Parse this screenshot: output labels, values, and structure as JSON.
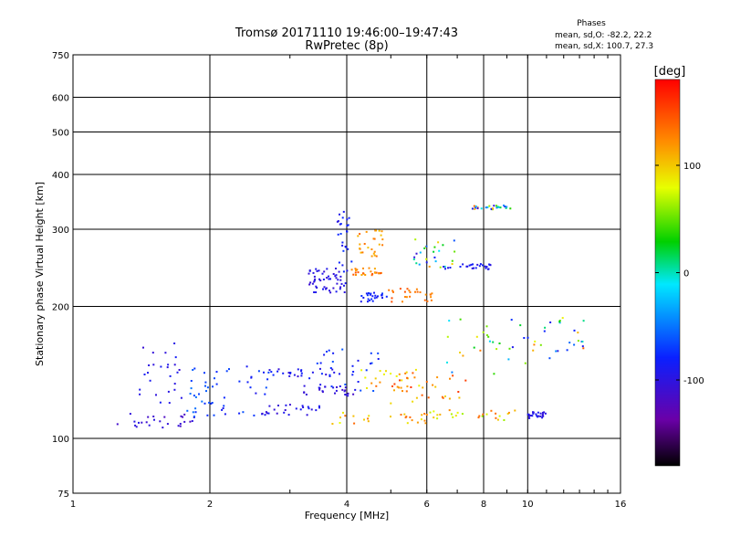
{
  "chart_data": {
    "type": "scatter",
    "title": "Tromsø 20171110 19:46:00–19:47:43",
    "subtitle": "RwPretec (8p)",
    "xlabel": "Frequency [MHz]",
    "ylabel": "Stationary phase Virtual Height [km]",
    "x_scale": "log",
    "y_scale": "log",
    "xlim": [
      1,
      16
    ],
    "ylim": [
      75,
      750
    ],
    "x_ticks": [
      1,
      2,
      4,
      6,
      8,
      10,
      16
    ],
    "x_tick_labels": [
      "1",
      "2",
      "4",
      "6",
      "8",
      "10",
      "16"
    ],
    "y_ticks": [
      75,
      100,
      200,
      300,
      400,
      500,
      600,
      750
    ],
    "y_tick_labels": [
      "75",
      "100",
      "200",
      "300",
      "400",
      "500",
      "600",
      "750"
    ],
    "grid": true,
    "phase_info": {
      "title": "Phases",
      "line1": "mean, sd,O: -82.2, 22.2",
      "line2": "mean, sd,X: 100.7, 27.3"
    },
    "colorbar": {
      "unit_label": "[deg]",
      "range": [
        -180,
        180
      ],
      "ticks": [
        100,
        0,
        -100
      ],
      "tick_labels": [
        "100",
        "0",
        "-100"
      ],
      "colormap": "rainbow (black → purple → blue → cyan → green → yellow → orange → red)"
    },
    "clusters": [
      {
        "f": [
          1.25,
          1.85
        ],
        "h": [
          105,
          115
        ],
        "ph": [
          -120,
          -95
        ]
      },
      {
        "f": [
          1.4,
          1.75
        ],
        "h": [
          115,
          165
        ],
        "ph": [
          -110,
          -85
        ]
      },
      {
        "f": [
          1.75,
          2.05
        ],
        "h": [
          112,
          145
        ],
        "ph": [
          -80,
          -50
        ]
      },
      {
        "f": [
          2.0,
          2.7
        ],
        "h": [
          112,
          150
        ],
        "ph": [
          -95,
          -60
        ]
      },
      {
        "f": [
          2.6,
          3.5
        ],
        "h": [
          113,
          120
        ],
        "ph": [
          -110,
          -85
        ]
      },
      {
        "f": [
          2.7,
          3.8
        ],
        "h": [
          138,
          145
        ],
        "ph": [
          -110,
          -75
        ]
      },
      {
        "f": [
          3.2,
          4.2
        ],
        "h": [
          125,
          132
        ],
        "ph": [
          -115,
          -90
        ]
      },
      {
        "f": [
          3.3,
          4.7
        ],
        "h": [
          128,
          160
        ],
        "ph": [
          -100,
          -60
        ]
      },
      {
        "f": [
          3.7,
          6.2
        ],
        "h": [
          108,
          115
        ],
        "ph": [
          70,
          140
        ]
      },
      {
        "f": [
          4.2,
          6.5
        ],
        "h": [
          130,
          145
        ],
        "ph": [
          80,
          150
        ]
      },
      {
        "f": [
          5.0,
          7.5
        ],
        "h": [
          120,
          140
        ],
        "ph": [
          90,
          160
        ]
      },
      {
        "f": [
          6.0,
          9.5
        ],
        "h": [
          110,
          116
        ],
        "ph": [
          60,
          140
        ]
      },
      {
        "f": [
          6.5,
          10.0
        ],
        "h": [
          140,
          190
        ],
        "ph": [
          -100,
          150
        ]
      },
      {
        "f": [
          10.0,
          13.5
        ],
        "h": [
          150,
          190
        ],
        "ph": [
          -100,
          150
        ]
      },
      {
        "f": [
          10.0,
          11.0
        ],
        "h": [
          111,
          115
        ],
        "ph": [
          -105,
          -90
        ]
      },
      {
        "f": [
          3.3,
          3.9
        ],
        "h": [
          230,
          245
        ],
        "ph": [
          -110,
          -90
        ]
      },
      {
        "f": [
          3.3,
          4.0
        ],
        "h": [
          215,
          230
        ],
        "ph": [
          -110,
          -90
        ]
      },
      {
        "f": [
          3.8,
          4.1
        ],
        "h": [
          240,
          330
        ],
        "ph": [
          -100,
          -70
        ]
      },
      {
        "f": [
          4.3,
          4.9
        ],
        "h": [
          205,
          215
        ],
        "ph": [
          -95,
          -70
        ]
      },
      {
        "f": [
          4.1,
          4.8
        ],
        "h": [
          235,
          245
        ],
        "ph": [
          110,
          150
        ]
      },
      {
        "f": [
          4.2,
          4.8
        ],
        "h": [
          260,
          300
        ],
        "ph": [
          100,
          140
        ]
      },
      {
        "f": [
          4.9,
          6.2
        ],
        "h": [
          205,
          220
        ],
        "ph": [
          120,
          150
        ]
      },
      {
        "f": [
          5.6,
          7.0
        ],
        "h": [
          245,
          285
        ],
        "ph": [
          -110,
          130
        ]
      },
      {
        "f": [
          6.5,
          8.5
        ],
        "h": [
          243,
          250
        ],
        "ph": [
          -110,
          -80
        ]
      },
      {
        "f": [
          7.5,
          9.2
        ],
        "h": [
          333,
          340
        ],
        "ph": [
          -110,
          140
        ]
      }
    ]
  }
}
